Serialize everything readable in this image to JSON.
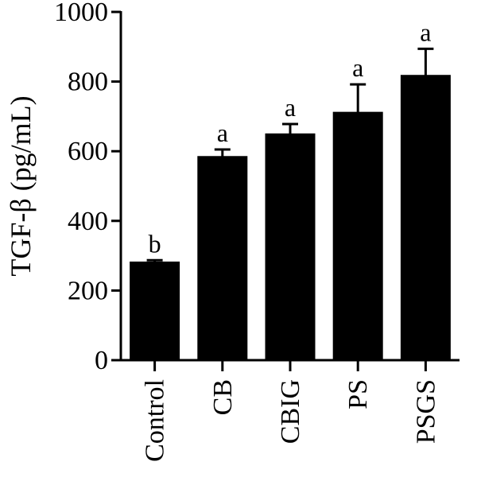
{
  "chart_data": {
    "type": "bar",
    "ylabel": "TGF-β (pg/mL)",
    "ylim": [
      0,
      1000
    ],
    "yticks": [
      "0",
      "200",
      "400",
      "600",
      "800",
      "1000"
    ],
    "categories": [
      "Control",
      "CB",
      "CBIG",
      "PS",
      "PSGS"
    ],
    "values": [
      282,
      585,
      650,
      712,
      818
    ],
    "errors": [
      5,
      20,
      28,
      80,
      76
    ],
    "significance": [
      "b",
      "a",
      "a",
      "a",
      "a"
    ],
    "bar_color": "#000000",
    "grid": false,
    "legend": "none"
  }
}
